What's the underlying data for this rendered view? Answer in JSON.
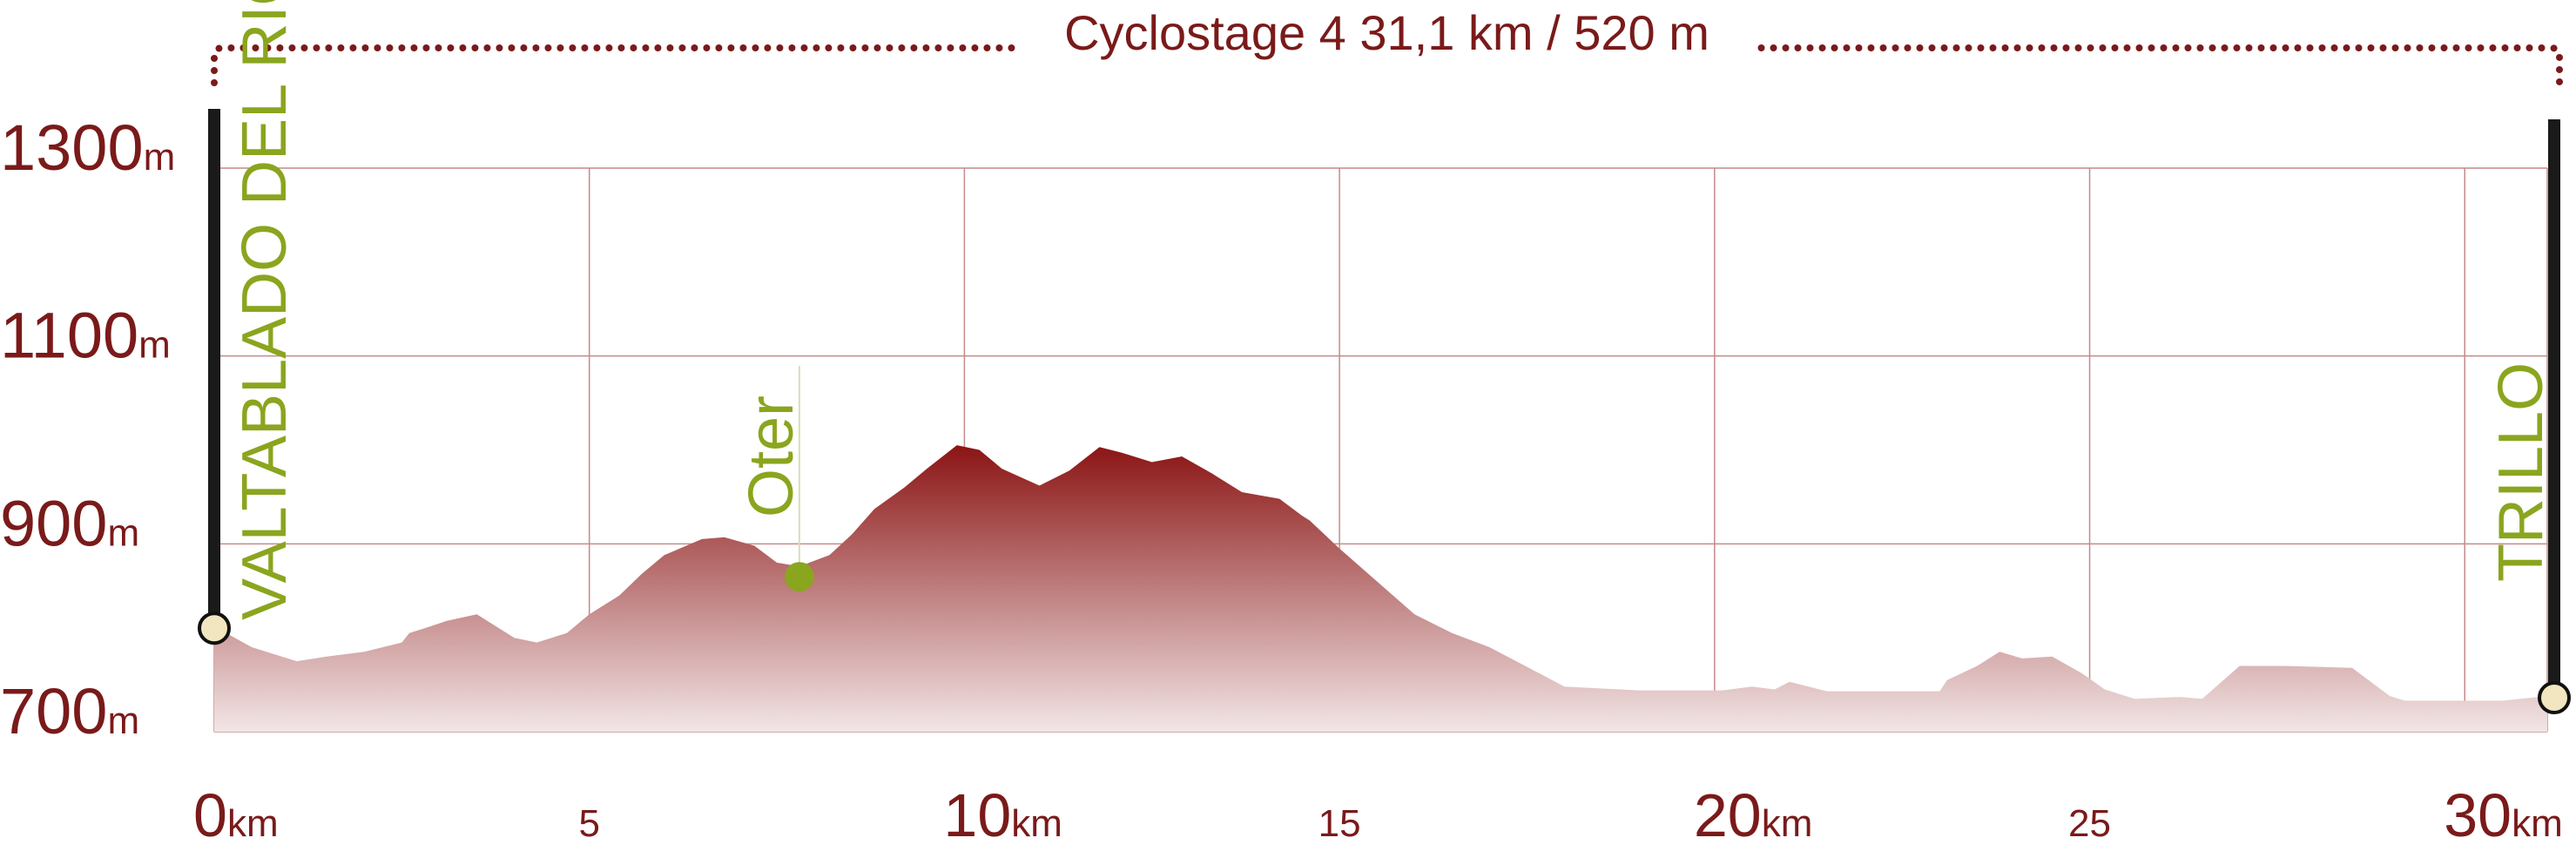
{
  "chart_data": {
    "type": "area",
    "title": "Cyclostage 4 31,1 km / 520 m",
    "x_unit": "km",
    "y_unit": "m",
    "xlim": [
      0,
      31.1
    ],
    "ylim": [
      700,
      1300
    ],
    "y_ticks": [
      {
        "value": 1300,
        "label": "1300"
      },
      {
        "value": 1100,
        "label": "1100"
      },
      {
        "value": 900,
        "label": "900"
      },
      {
        "value": 700,
        "label": "700"
      }
    ],
    "x_ticks": [
      {
        "value": 0,
        "label": "0",
        "unit": "km",
        "major": true
      },
      {
        "value": 5,
        "label": "5",
        "unit": "",
        "major": false
      },
      {
        "value": 10,
        "label": "10",
        "unit": "km",
        "major": true
      },
      {
        "value": 15,
        "label": "15",
        "unit": "",
        "major": false
      },
      {
        "value": 20,
        "label": "20",
        "unit": "km",
        "major": true
      },
      {
        "value": 25,
        "label": "25",
        "unit": "",
        "major": false
      },
      {
        "value": 30,
        "label": "30",
        "unit": "km",
        "major": true
      }
    ],
    "grid": true,
    "x": [
      0,
      0.5,
      1.1,
      1.5,
      2.0,
      2.5,
      2.6,
      2.8,
      3.1,
      3.5,
      3.7,
      4.0,
      4.3,
      4.7,
      5.0,
      5.4,
      5.7,
      6.0,
      6.5,
      6.8,
      7.2,
      7.5,
      7.8,
      8.2,
      8.5,
      8.8,
      9.2,
      9.5,
      9.9,
      10.2,
      10.5,
      11.0,
      11.4,
      11.8,
      12.1,
      12.5,
      12.9,
      13.3,
      13.7,
      14.2,
      14.5,
      14.6,
      15.0,
      15.5,
      16.0,
      16.5,
      17.0,
      18.0,
      19.0,
      20.1,
      20.5,
      20.8,
      21.0,
      21.5,
      22.0,
      23.0,
      23.1,
      23.5,
      23.8,
      24.1,
      24.5,
      24.9,
      25.2,
      25.6,
      26.2,
      26.5,
      27.0,
      27.6,
      28.5,
      29.0,
      29.2,
      30.0,
      30.5,
      31.1
    ],
    "y": [
      812,
      790,
      775,
      780,
      785,
      795,
      805,
      810,
      818,
      825,
      815,
      800,
      795,
      805,
      825,
      845,
      868,
      888,
      905,
      907,
      898,
      880,
      876,
      888,
      910,
      937,
      960,
      980,
      1005,
      1000,
      980,
      962,
      978,
      1003,
      997,
      987,
      993,
      975,
      955,
      948,
      930,
      925,
      895,
      860,
      825,
      805,
      790,
      748,
      744,
      744,
      748,
      745,
      753,
      743,
      743,
      743,
      755,
      770,
      785,
      778,
      780,
      762,
      745,
      735,
      737,
      735,
      770,
      770,
      768,
      738,
      733,
      733,
      733,
      738
    ],
    "start_point": {
      "name": "VALTABLADO DEL RIO",
      "km": 0,
      "elevation": 812
    },
    "end_point": {
      "name": "TRILLO",
      "km": 31.1,
      "elevation": 738
    },
    "waypoints": [
      {
        "name": "Oter",
        "km": 7.8,
        "elevation": 876
      }
    ],
    "colors": {
      "fill_top": "#8b1414",
      "fill_bottom": "#f2e6e6",
      "grid": "#c58a8a",
      "text": "#7a1a1a",
      "place": "#8aa51e",
      "marker": "#f1e6bf",
      "pole": "#1a1a1a"
    }
  }
}
